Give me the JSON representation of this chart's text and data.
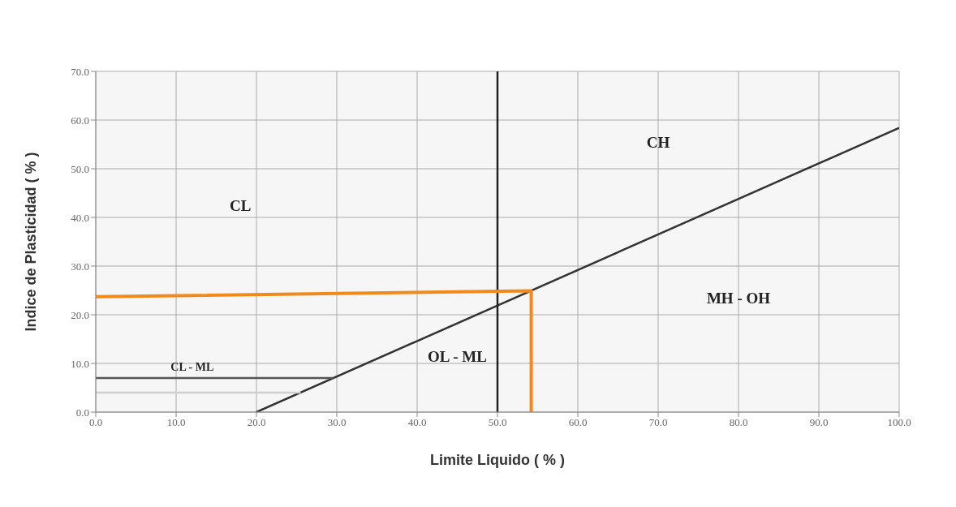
{
  "chart_data": {
    "type": "line",
    "xlabel": "Limite Liquido ( % )",
    "ylabel": "Indice de Plasticidad ( % )",
    "xlim": [
      0,
      100
    ],
    "ylim": [
      0,
      70
    ],
    "xticks": [
      {
        "value": 0,
        "label": "0.0"
      },
      {
        "value": 10,
        "label": "10.0"
      },
      {
        "value": 20,
        "label": "20.0"
      },
      {
        "value": 30,
        "label": "30.0"
      },
      {
        "value": 40,
        "label": "40.0"
      },
      {
        "value": 50,
        "label": "50.0"
      },
      {
        "value": 60,
        "label": "60.0"
      },
      {
        "value": 70,
        "label": "70.0"
      },
      {
        "value": 80,
        "label": "80.0"
      },
      {
        "value": 90,
        "label": "90.0"
      },
      {
        "value": 100,
        "label": "100.0"
      }
    ],
    "yticks": [
      {
        "value": 0,
        "label": "0.0"
      },
      {
        "value": 10,
        "label": "10.0"
      },
      {
        "value": 20,
        "label": "20.0"
      },
      {
        "value": 30,
        "label": "30.0"
      },
      {
        "value": 40,
        "label": "40.0"
      },
      {
        "value": 50,
        "label": "50.0"
      },
      {
        "value": 60,
        "label": "60.0"
      },
      {
        "value": 70,
        "label": "70.0"
      }
    ],
    "grid": true,
    "marker": "none",
    "line_style": "solid",
    "series": [
      {
        "color": "#333333",
        "x": [
          20,
          100
        ],
        "values": [
          0,
          58.4
        ]
      },
      {
        "color": "#222222",
        "x": [
          50,
          50
        ],
        "values": [
          0,
          70
        ]
      },
      {
        "color": "#555555",
        "x": [
          0,
          29.6
        ],
        "values": [
          7,
          7
        ]
      },
      {
        "color": "#d0d0d0",
        "x": [
          0,
          25.5
        ],
        "values": [
          4,
          4
        ]
      },
      {
        "color": "#f08a1c",
        "x": [
          0,
          54.2,
          54.2
        ],
        "values": [
          23.7,
          24.9,
          0
        ]
      }
    ],
    "annotations": [
      "CL",
      "CH",
      "MH - OH",
      "OL - ML",
      "CL - ML"
    ]
  }
}
